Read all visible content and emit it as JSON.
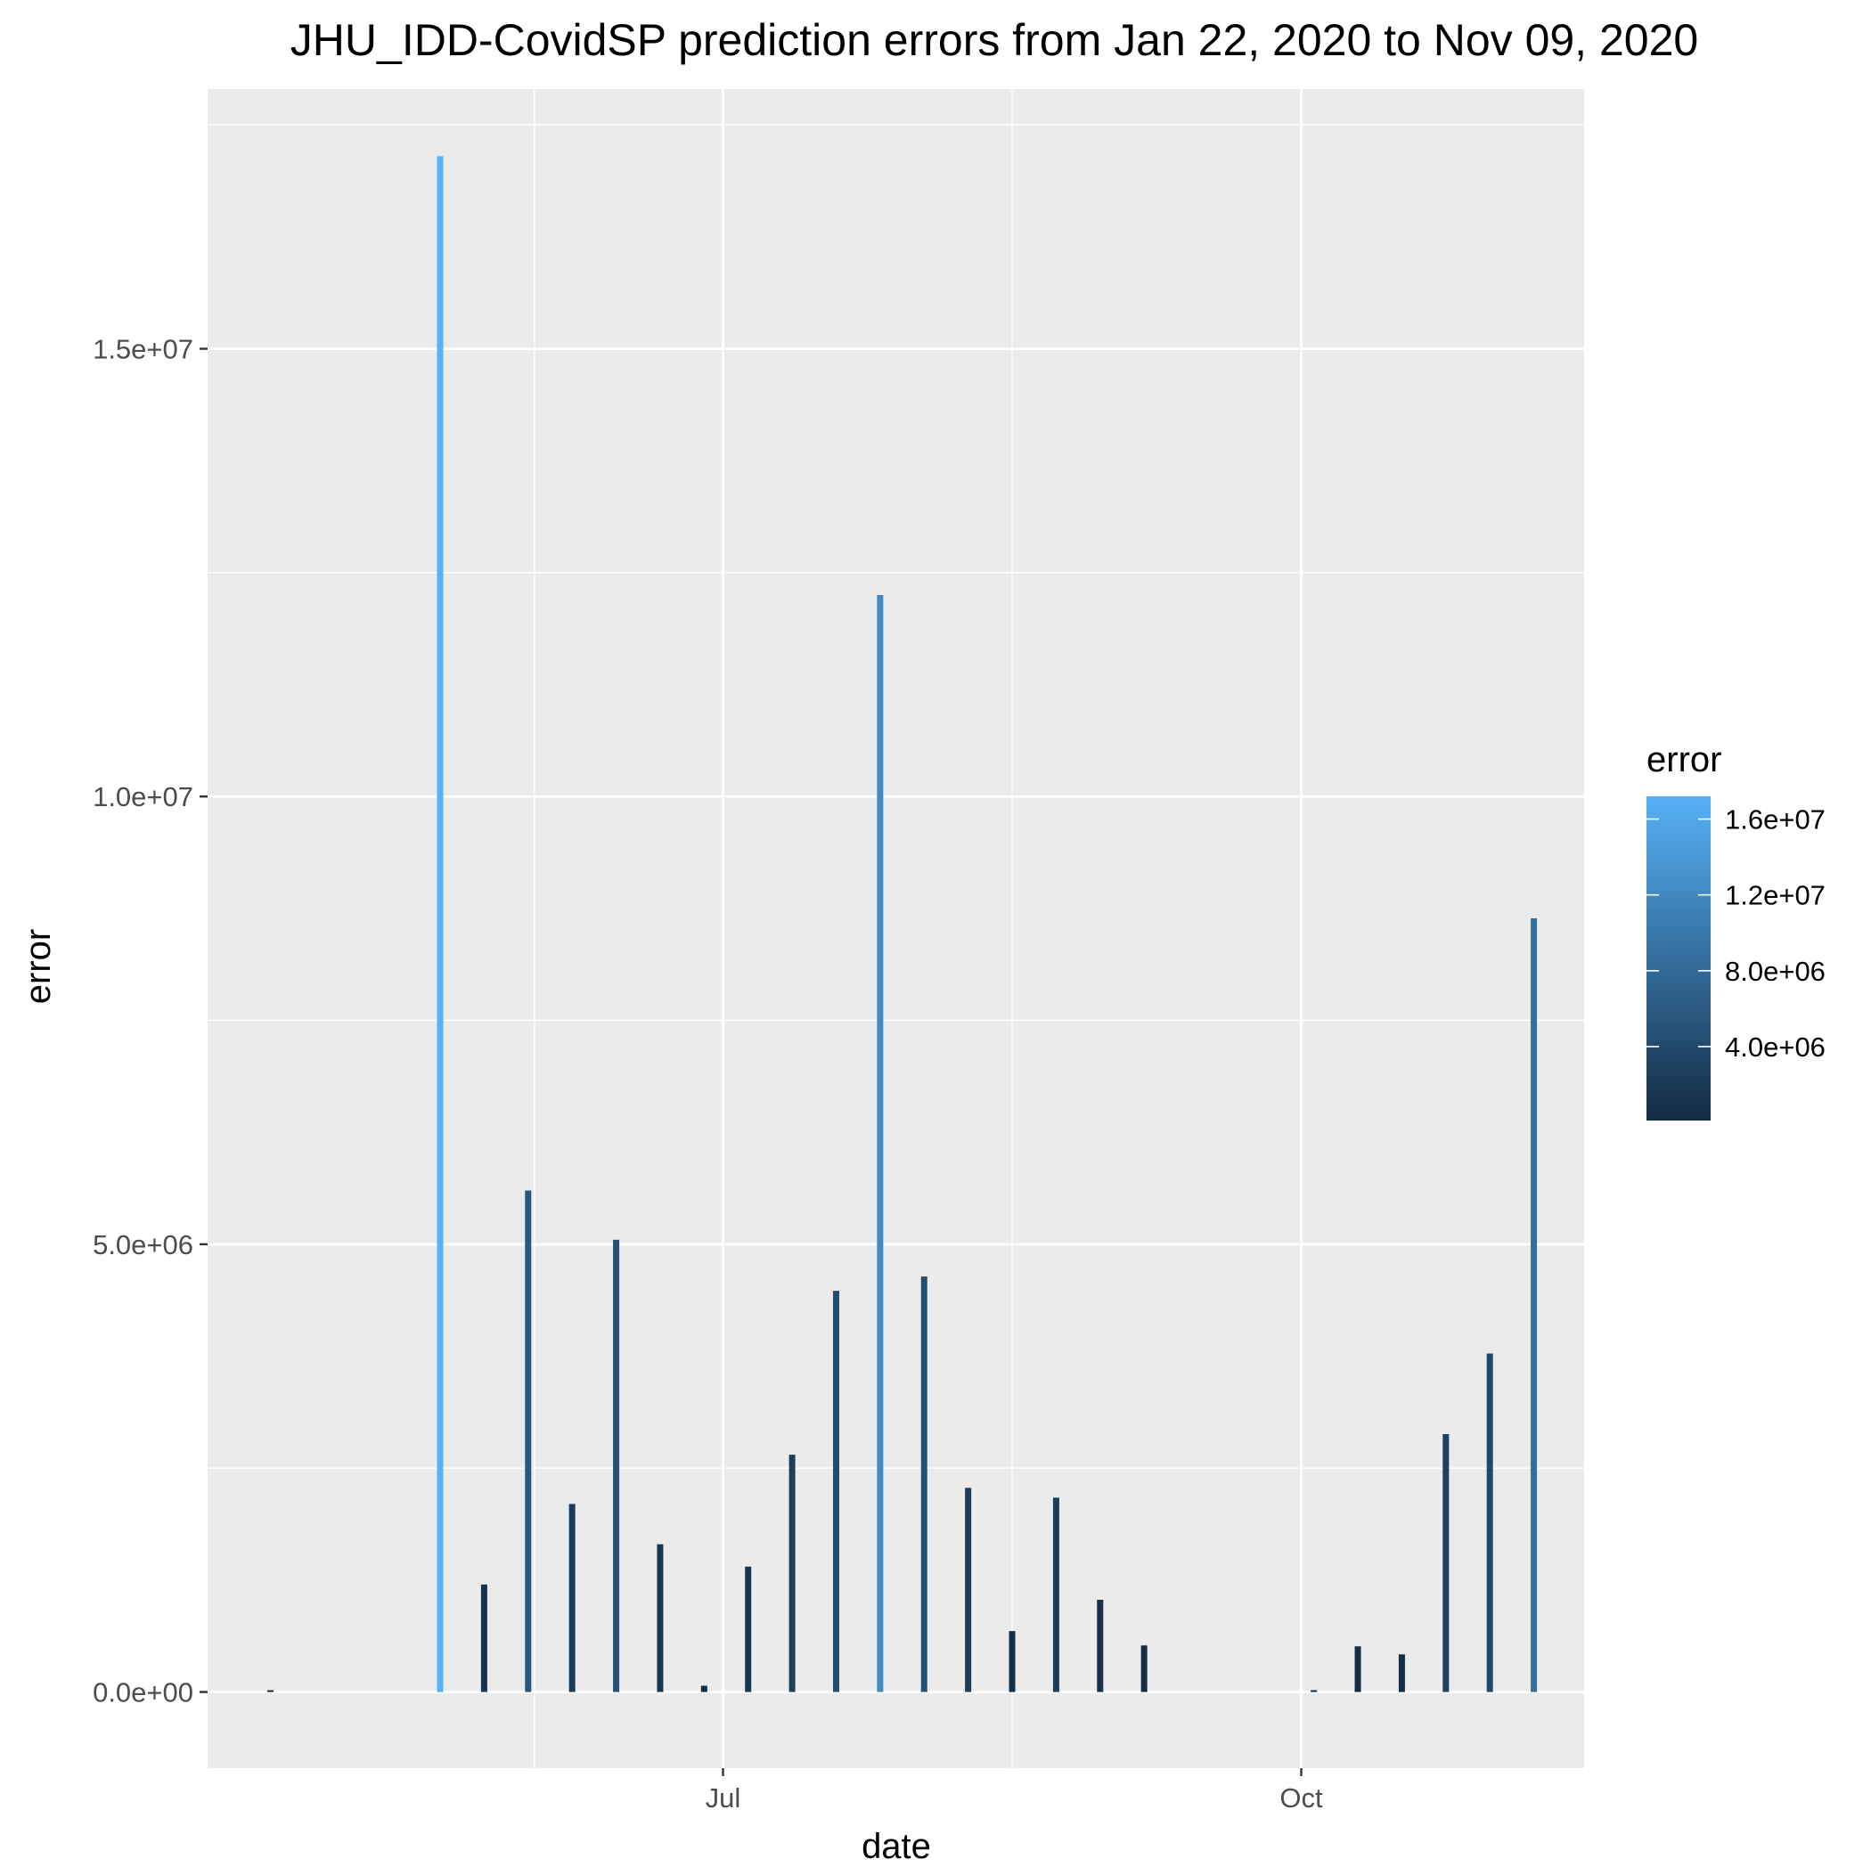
{
  "chart_data": {
    "type": "bar",
    "title": "JHU_IDD-CovidSP prediction errors from Jan 22, 2020 to Nov 09, 2020",
    "xlabel": "date",
    "ylabel": "error",
    "x_tick_labels": [
      {
        "date": "2020-07-01",
        "label": "Jul"
      },
      {
        "date": "2020-10-01",
        "label": "Oct"
      }
    ],
    "y_tick_labels": [
      {
        "value": 0,
        "label": "0.0e+00"
      },
      {
        "value": 5000000,
        "label": "5.0e+06"
      },
      {
        "value": 10000000,
        "label": "1.0e+07"
      },
      {
        "value": 15000000,
        "label": "1.5e+07"
      }
    ],
    "xlim": [
      "2020-04-10",
      "2020-11-15"
    ],
    "ylim": [
      -850000,
      17900000
    ],
    "grid": true,
    "points": [
      {
        "date": "2020-04-20",
        "value": 20000
      },
      {
        "date": "2020-05-17",
        "value": 17150000
      },
      {
        "date": "2020-05-24",
        "value": 1200000
      },
      {
        "date": "2020-05-31",
        "value": 5600000
      },
      {
        "date": "2020-06-07",
        "value": 2100000
      },
      {
        "date": "2020-06-14",
        "value": 5050000
      },
      {
        "date": "2020-06-21",
        "value": 1650000
      },
      {
        "date": "2020-06-28",
        "value": 70000
      },
      {
        "date": "2020-07-05",
        "value": 1400000
      },
      {
        "date": "2020-07-12",
        "value": 2650000
      },
      {
        "date": "2020-07-19",
        "value": 4480000
      },
      {
        "date": "2020-07-26",
        "value": 12250000
      },
      {
        "date": "2020-08-02",
        "value": 4640000
      },
      {
        "date": "2020-08-09",
        "value": 2280000
      },
      {
        "date": "2020-08-16",
        "value": 680000
      },
      {
        "date": "2020-08-23",
        "value": 2170000
      },
      {
        "date": "2020-08-30",
        "value": 1030000
      },
      {
        "date": "2020-09-06",
        "value": 520000
      },
      {
        "date": "2020-10-03",
        "value": 20000
      },
      {
        "date": "2020-10-10",
        "value": 510000
      },
      {
        "date": "2020-10-17",
        "value": 420000
      },
      {
        "date": "2020-10-24",
        "value": 2880000
      },
      {
        "date": "2020-10-31",
        "value": 3780000
      },
      {
        "date": "2020-11-07",
        "value": 8640000
      }
    ],
    "legend": {
      "title": "error",
      "placement": "right",
      "range": [
        100000,
        17200000
      ],
      "color_low": "#132B43",
      "color_high": "#56B1F7",
      "labels": [
        {
          "value": 16000000,
          "label": "1.6e+07"
        },
        {
          "value": 12000000,
          "label": "1.2e+07"
        },
        {
          "value": 8000000,
          "label": "8.0e+06"
        },
        {
          "value": 4000000,
          "label": "4.0e+06"
        }
      ]
    },
    "panel_color": "#EBEBEB",
    "grid_color": "#FFFFFF",
    "tick_color": "#333333"
  }
}
